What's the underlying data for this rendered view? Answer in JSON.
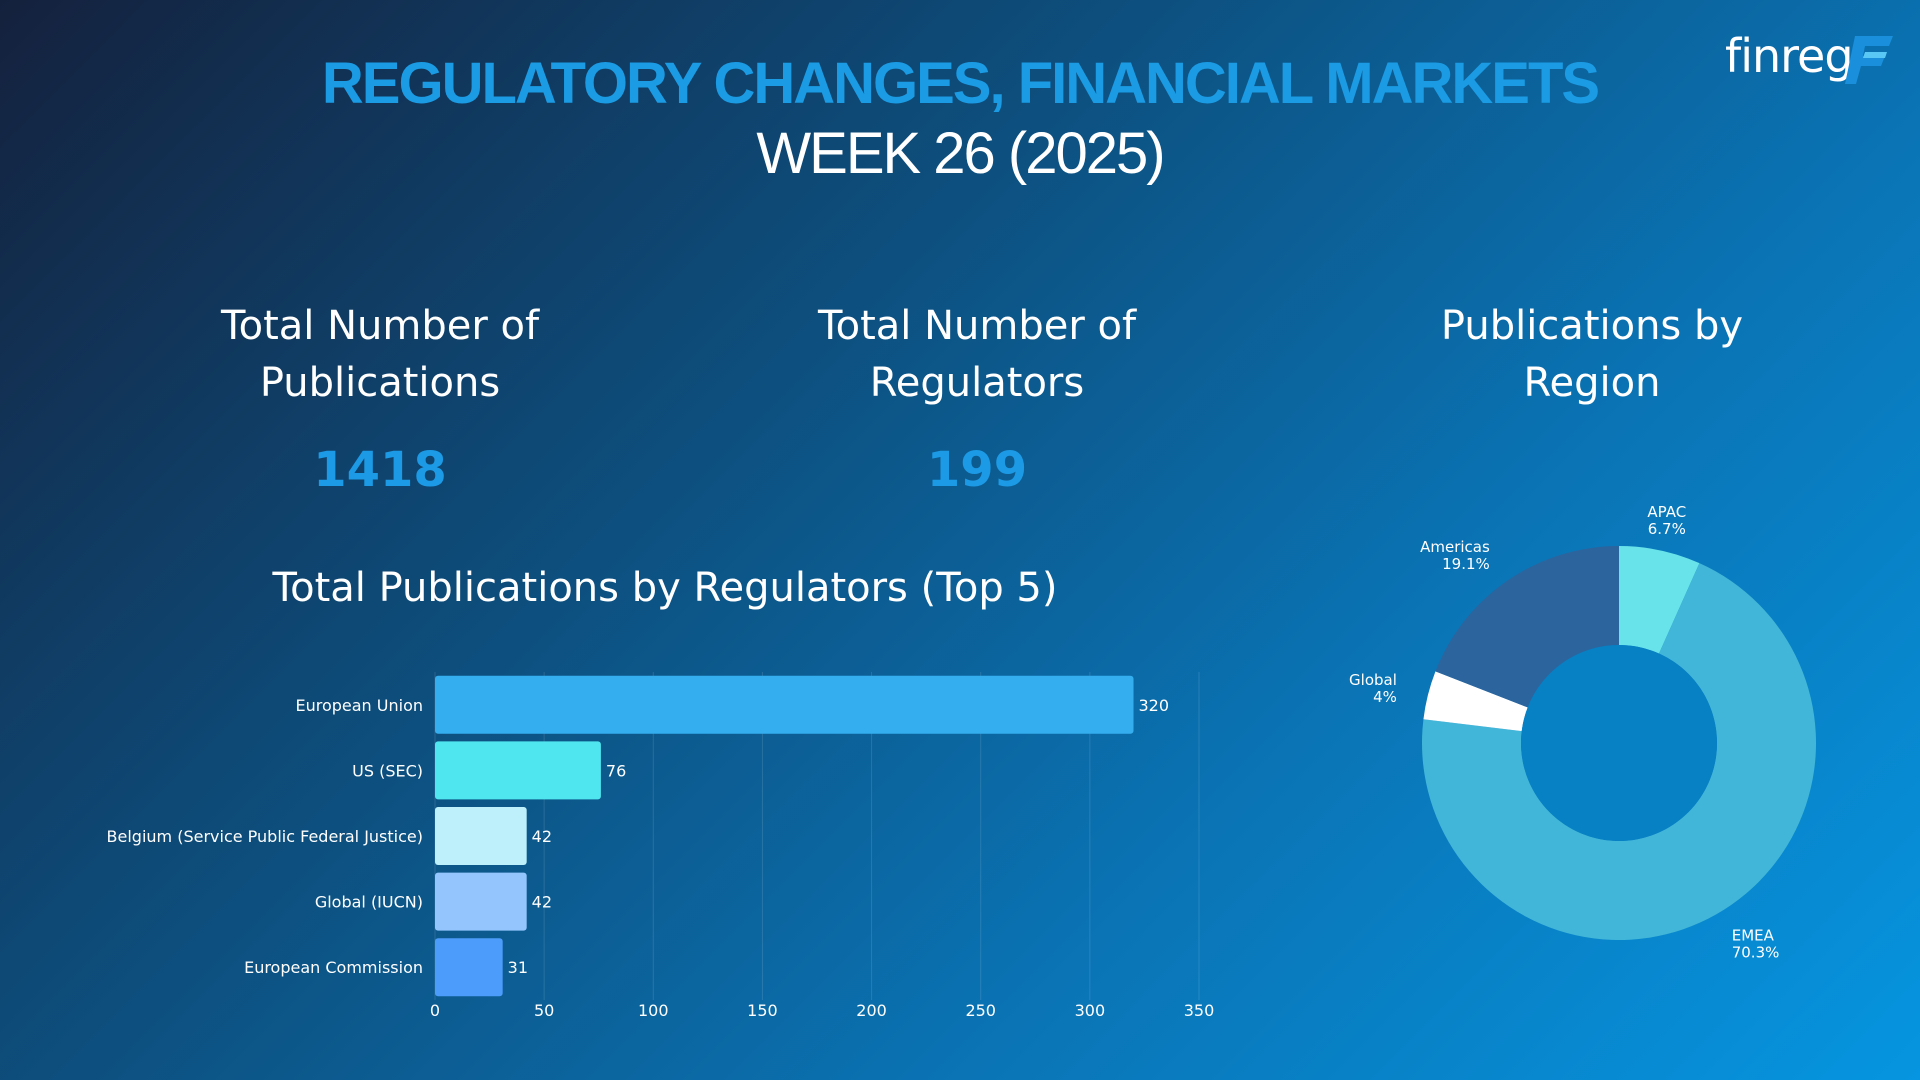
{
  "header": {
    "title": "REGULATORY CHANGES, FINANCIAL MARKETS",
    "subtitle": "WEEK 26 (2025)",
    "logo_text": "finreg",
    "logo_mark": "F"
  },
  "kpis": [
    {
      "label": "Total Number of\nPublications",
      "value": "1418"
    },
    {
      "label": "Total Number of\nRegulators",
      "value": "199"
    }
  ],
  "region_title": "Publications by\nRegion",
  "chart_data": [
    {
      "type": "bar",
      "orientation": "horizontal",
      "title": "Total Publications by Regulators (Top 5)",
      "categories": [
        "European Union",
        "US (SEC)",
        "Belgium (Service Public Federal Justice)",
        "Global (IUCN)",
        "European Commission"
      ],
      "values": [
        320,
        76,
        42,
        42,
        31
      ],
      "colors": [
        "#35aeef",
        "#4fe6f0",
        "#bdf0fb",
        "#94c5fc",
        "#4c9cfb"
      ],
      "xlim": [
        0,
        350
      ],
      "xticks": [
        0,
        50,
        100,
        150,
        200,
        250,
        300,
        350
      ],
      "grid": true
    },
    {
      "type": "pie",
      "style": "donut",
      "title": "Publications by Region",
      "slices": [
        {
          "label": "APAC",
          "pct_label": "6.7%",
          "value": 6.7,
          "color": "#68e3ea"
        },
        {
          "label": "EMEA",
          "pct_label": "70.3%",
          "value": 70.3,
          "color": "#42b6d8"
        },
        {
          "label": "Global",
          "pct_label": "4%",
          "value": 4.0,
          "color": "#ffffff"
        },
        {
          "label": "Americas",
          "pct_label": "19.1%",
          "value": 19.1,
          "color": "#2c649e"
        }
      ]
    }
  ]
}
